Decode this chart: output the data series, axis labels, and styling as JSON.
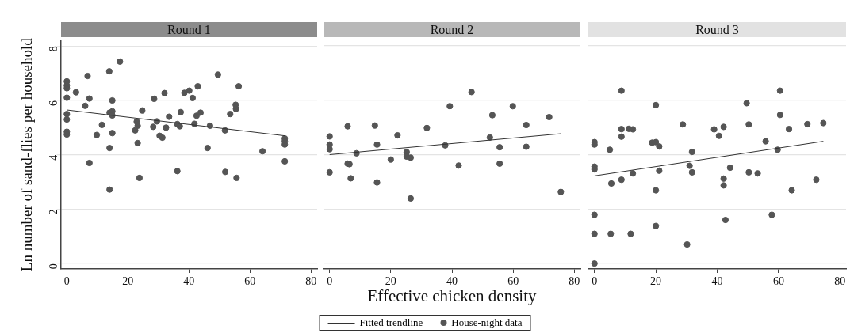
{
  "chart_data": [
    {
      "type": "scatter",
      "title": "Round 1",
      "ylabel": "Ln number of sand-flies per household",
      "xlim": [
        -2,
        82
      ],
      "xticks": [
        0,
        20,
        40,
        60,
        80
      ],
      "ylim": [
        -0.2,
        8.2
      ],
      "yticks": [
        0,
        2,
        4,
        6,
        8
      ],
      "grid": "y",
      "legend": "bottom",
      "series": [
        {
          "name": "Fitted trendline",
          "type": "line",
          "marker": "none",
          "color": "#333333",
          "x": [
            0,
            71.4
          ],
          "values": [
            5.65,
            4.7
          ]
        },
        {
          "name": "House-night data",
          "type": "scatter",
          "marker": "circle",
          "color": "#555555",
          "x": [
            0,
            0,
            0,
            0,
            0,
            0,
            0,
            0,
            3,
            6,
            6.8,
            7.4,
            7.4,
            9.8,
            11.5,
            13.9,
            14,
            14,
            14,
            14.9,
            14.9,
            14.9,
            14.9,
            17.4,
            22.4,
            22.9,
            23.2,
            23.2,
            23.8,
            24.7,
            28.3,
            28.6,
            29.5,
            30.4,
            31.3,
            32,
            32.5,
            33.5,
            36.2,
            36.2,
            37,
            37.3,
            38.5,
            40.1,
            41.2,
            41.8,
            42.5,
            42.9,
            43.8,
            46.1,
            46.9,
            49.5,
            51.8,
            51.9,
            53.5,
            55.3,
            55.4,
            55.6,
            56.3,
            64.1,
            71.4,
            71.4,
            71.4,
            71.4
          ],
          "values": [
            6.7,
            6.55,
            6.45,
            6.1,
            5.5,
            5.3,
            4.85,
            4.75,
            6.3,
            5.8,
            6.9,
            6.07,
            3.7,
            4.73,
            5.1,
            7.07,
            4.25,
            2.72,
            5.55,
            6.0,
            5.6,
            5.45,
            4.8,
            7.43,
            4.9,
            5.22,
            5.07,
            4.43,
            3.15,
            5.63,
            5.03,
            6.06,
            5.23,
            4.7,
            4.63,
            6.27,
            5.0,
            5.4,
            5.13,
            3.4,
            5.05,
            5.57,
            6.28,
            6.36,
            6.09,
            5.14,
            5.44,
            6.52,
            5.55,
            4.25,
            5.07,
            6.95,
            4.9,
            3.37,
            5.5,
            5.84,
            5.69,
            3.15,
            6.52,
            4.13,
            4.6,
            4.5,
            4.38,
            3.76
          ]
        }
      ]
    },
    {
      "type": "scatter",
      "title": "Round 2",
      "xlabel": "Effective chicken density",
      "xlim": [
        -2,
        82
      ],
      "xticks": [
        0,
        20,
        40,
        60,
        80
      ],
      "ylim": [
        -0.2,
        8
      ],
      "yticks": [
        0,
        2,
        4,
        6,
        8
      ],
      "tick_labels": "x",
      "grid": "y",
      "series": [
        {
          "type": "line",
          "marker": "none",
          "color": "#333333",
          "x": [
            0,
            75.6
          ],
          "values": [
            4.0,
            4.77
          ]
        },
        {
          "type": "scatter",
          "marker": "circle",
          "color": "#555555",
          "x": [
            0,
            0,
            0,
            0,
            5.9,
            5.9,
            6.5,
            6.9,
            8.8,
            14.8,
            15.5,
            15.5,
            20,
            22.2,
            25.2,
            25.2,
            26.5,
            26.5,
            31.8,
            37.8,
            39.3,
            42.2,
            46.4,
            52.4,
            53.2,
            55.6,
            55.6,
            59.9,
            64.3,
            64.3,
            71.8,
            75.6
          ],
          "values": [
            4.67,
            4.37,
            4.2,
            3.35,
            5.04,
            3.67,
            3.65,
            3.13,
            4.05,
            5.07,
            4.37,
            2.98,
            3.82,
            4.71,
            4.09,
            3.93,
            3.89,
            2.39,
            4.98,
            4.34,
            5.78,
            3.6,
            6.3,
            4.63,
            5.45,
            4.27,
            3.67,
            5.78,
            5.09,
            4.29,
            5.38,
            2.63
          ]
        }
      ]
    },
    {
      "type": "scatter",
      "title": "Round 3",
      "xlim": [
        -2,
        82
      ],
      "xticks": [
        0,
        20,
        40,
        60,
        80
      ],
      "ylim": [
        -0.2,
        8
      ],
      "yticks": [
        0,
        2,
        4,
        6,
        8
      ],
      "tick_labels": "x",
      "grid": "y",
      "series": [
        {
          "type": "line",
          "marker": "none",
          "color": "#333333",
          "x": [
            0,
            74.6
          ],
          "values": [
            3.22,
            4.49
          ]
        },
        {
          "type": "scatter",
          "marker": "circle",
          "color": "#555555",
          "x": [
            0,
            0,
            0,
            0,
            0,
            0,
            0,
            5,
            5.5,
            5.3,
            8.8,
            8.8,
            8.8,
            8.8,
            11.2,
            12.5,
            11.8,
            12.5,
            18.8,
            20,
            20,
            20,
            20,
            21.1,
            21.1,
            28.8,
            30.2,
            31,
            31.8,
            31.8,
            39,
            40.6,
            42.1,
            42.1,
            42.1,
            42.7,
            44.2,
            49.6,
            50.3,
            50.3,
            53.2,
            55.8,
            57.8,
            59.7,
            60.5,
            60.5,
            63.4,
            64.3,
            69.4,
            72.3,
            74.6
          ],
          "values": [
            4.46,
            4.37,
            3.56,
            3.46,
            1.79,
            1.09,
            0,
            4.18,
            2.94,
            1.09,
            6.35,
            4.94,
            4.66,
            3.08,
            4.95,
            4.93,
            1.09,
            3.31,
            4.44,
            4.46,
            5.82,
            2.69,
            1.38,
            4.3,
            3.41,
            5.11,
            0.7,
            3.59,
            4.1,
            3.35,
            4.93,
            4.69,
            5.02,
            3.12,
            2.87,
            1.6,
            3.52,
            5.89,
            5.11,
            3.35,
            3.31,
            4.49,
            1.79,
            4.18,
            6.35,
            5.46,
            4.94,
            2.69,
            5.12,
            3.08,
            5.16
          ]
        }
      ]
    }
  ]
}
